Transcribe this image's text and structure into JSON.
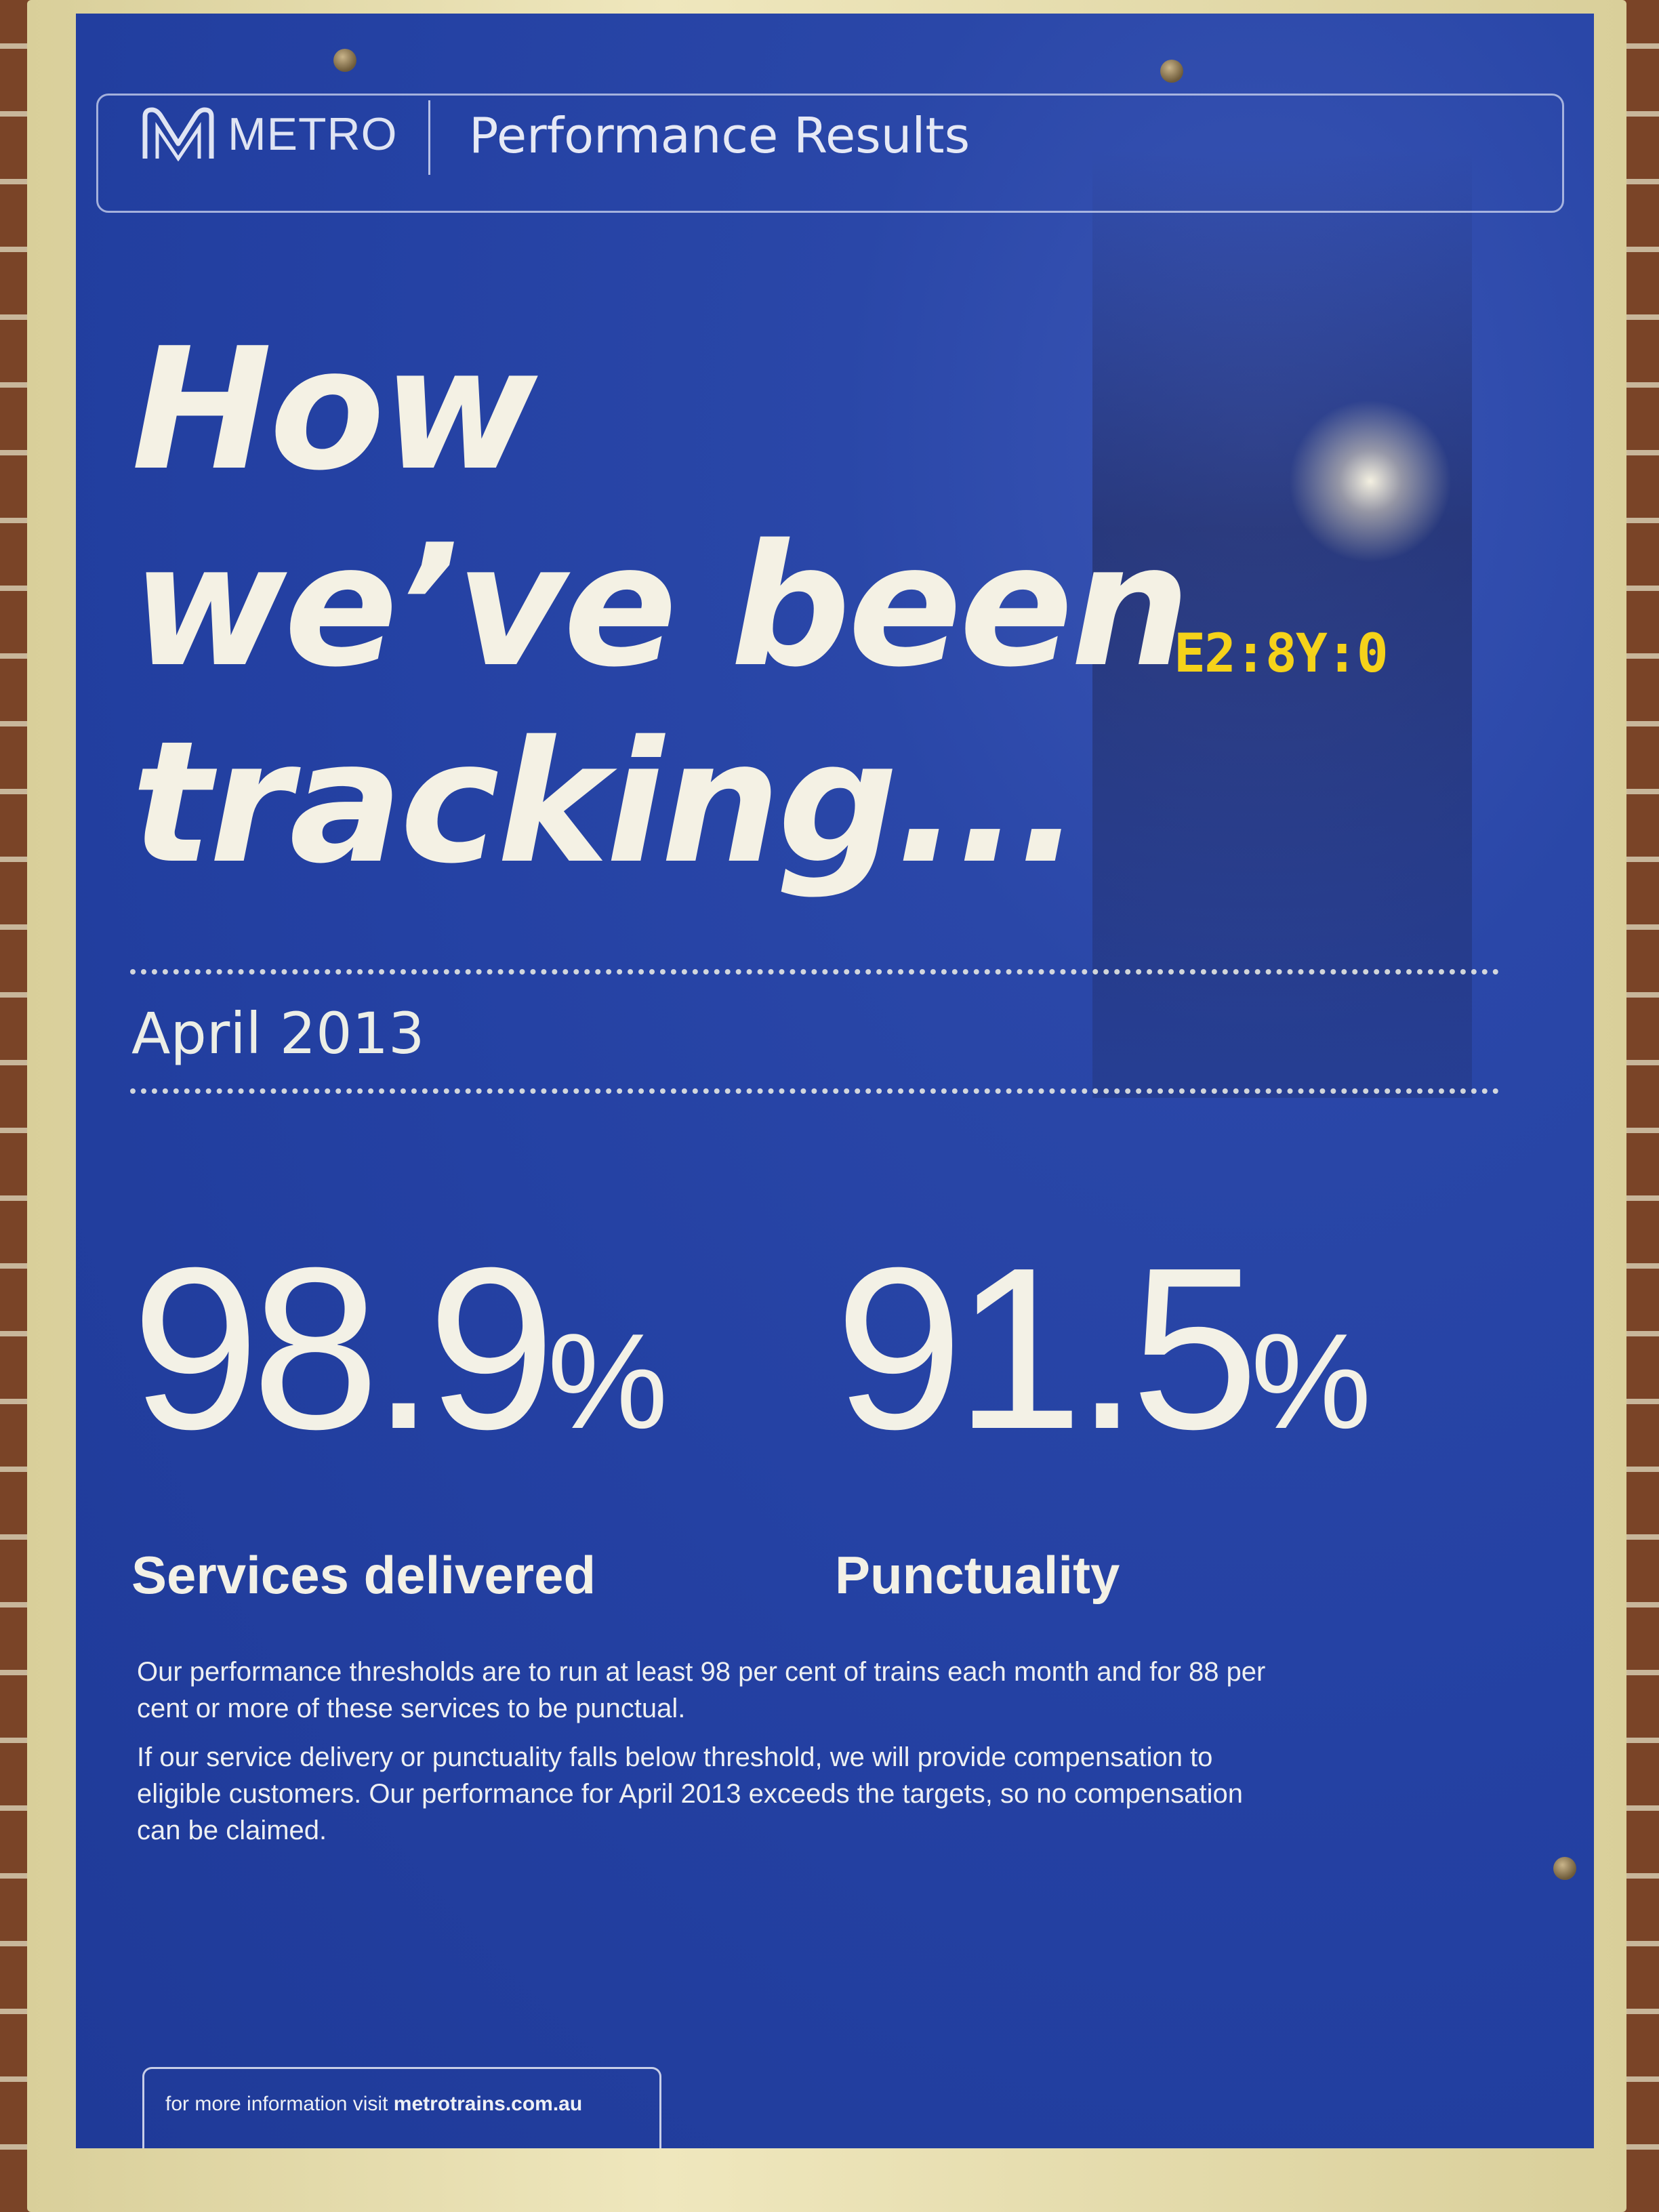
{
  "header": {
    "brand": "METRO",
    "title": "Performance Results"
  },
  "headline": {
    "line1": "How",
    "line2": "we’ve been",
    "line3": "tracking..."
  },
  "clock_display": "E2:8Y:0",
  "period": "April 2013",
  "stats": [
    {
      "value": "98.9",
      "unit": "%",
      "label": "Services delivered"
    },
    {
      "value": "91.5",
      "unit": "%",
      "label": "Punctuality"
    }
  ],
  "body": {
    "p1": "Our performance thresholds are to run at least 98 per cent of trains each month and for 88 per cent or more of these services to be punctual.",
    "p2": "If our service delivery or punctuality falls below threshold, we will provide compensation to eligible customers. Our performance for April 2013 exceeds the targets, so no compensation can be claimed."
  },
  "footer": {
    "prefix": "for more information visit",
    "url": "metrotrains.com.au"
  },
  "colors": {
    "poster_blue": "#2441a3",
    "text_cream": "#f4f1e4",
    "frame": "#efe7bd",
    "clock_amber": "#f5d21a"
  }
}
